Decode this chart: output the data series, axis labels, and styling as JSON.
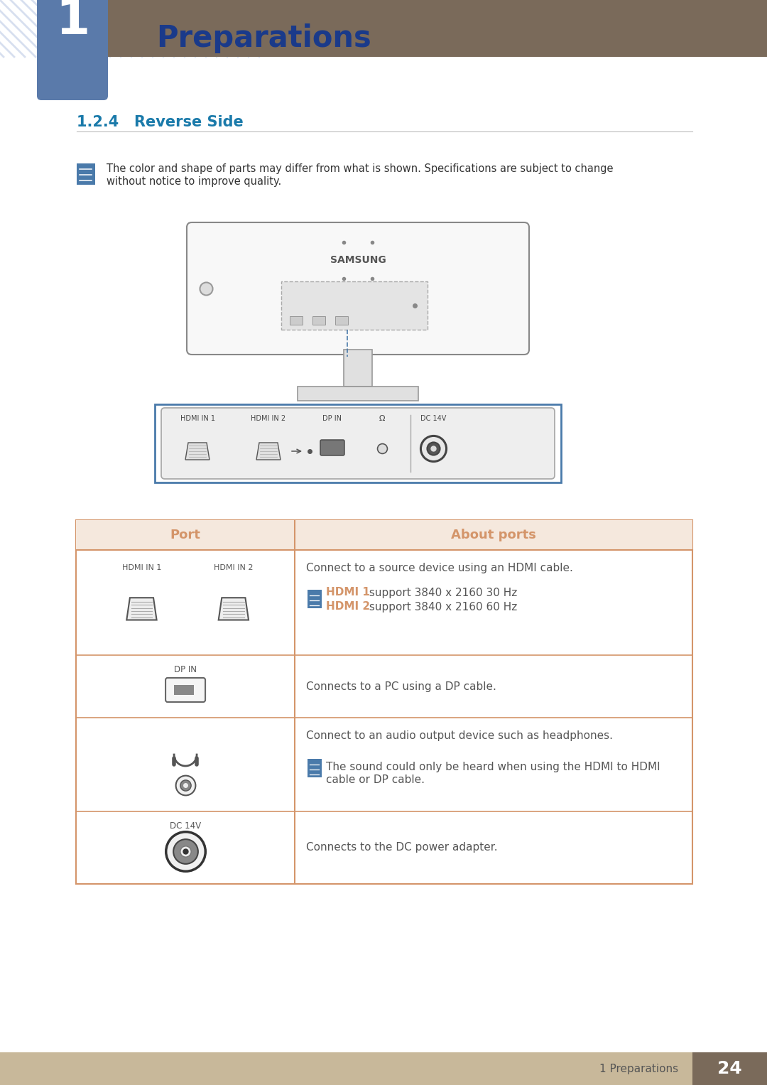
{
  "page_bg": "#ffffff",
  "header_bar_color": "#7a6a5a",
  "header_number_box_color": "#5a7aaa",
  "header_number": "1",
  "header_title": "Preparations",
  "header_title_color": "#1a3a8a",
  "section_title": "1.2.4   Reverse Side",
  "section_title_color": "#1a7aaa",
  "note_text_line1": "The color and shape of parts may differ from what is shown. Specifications are subject to change",
  "note_text_line2": "without notice to improve quality.",
  "note_text_color": "#333333",
  "table_border_color": "#d4956a",
  "table_header_bg": "#f5e8dd",
  "table_header_port_text": "Port",
  "table_header_about_text": "About ports",
  "table_header_text_color": "#d4956a",
  "body_text_color": "#555555",
  "hdmi_accent_color": "#d4956a",
  "footer_bg": "#c8b89a",
  "footer_number_bg": "#7a6a5a",
  "footer_text": "1 Preparations",
  "footer_number": "24",
  "monitor_outline_color": "#888888",
  "port_box_border_color": "#4a7aaa",
  "dashed_line_color": "#4a7aaa",
  "note_icon_color": "#4a7aaa",
  "stripe_color": "#b0c0e0"
}
